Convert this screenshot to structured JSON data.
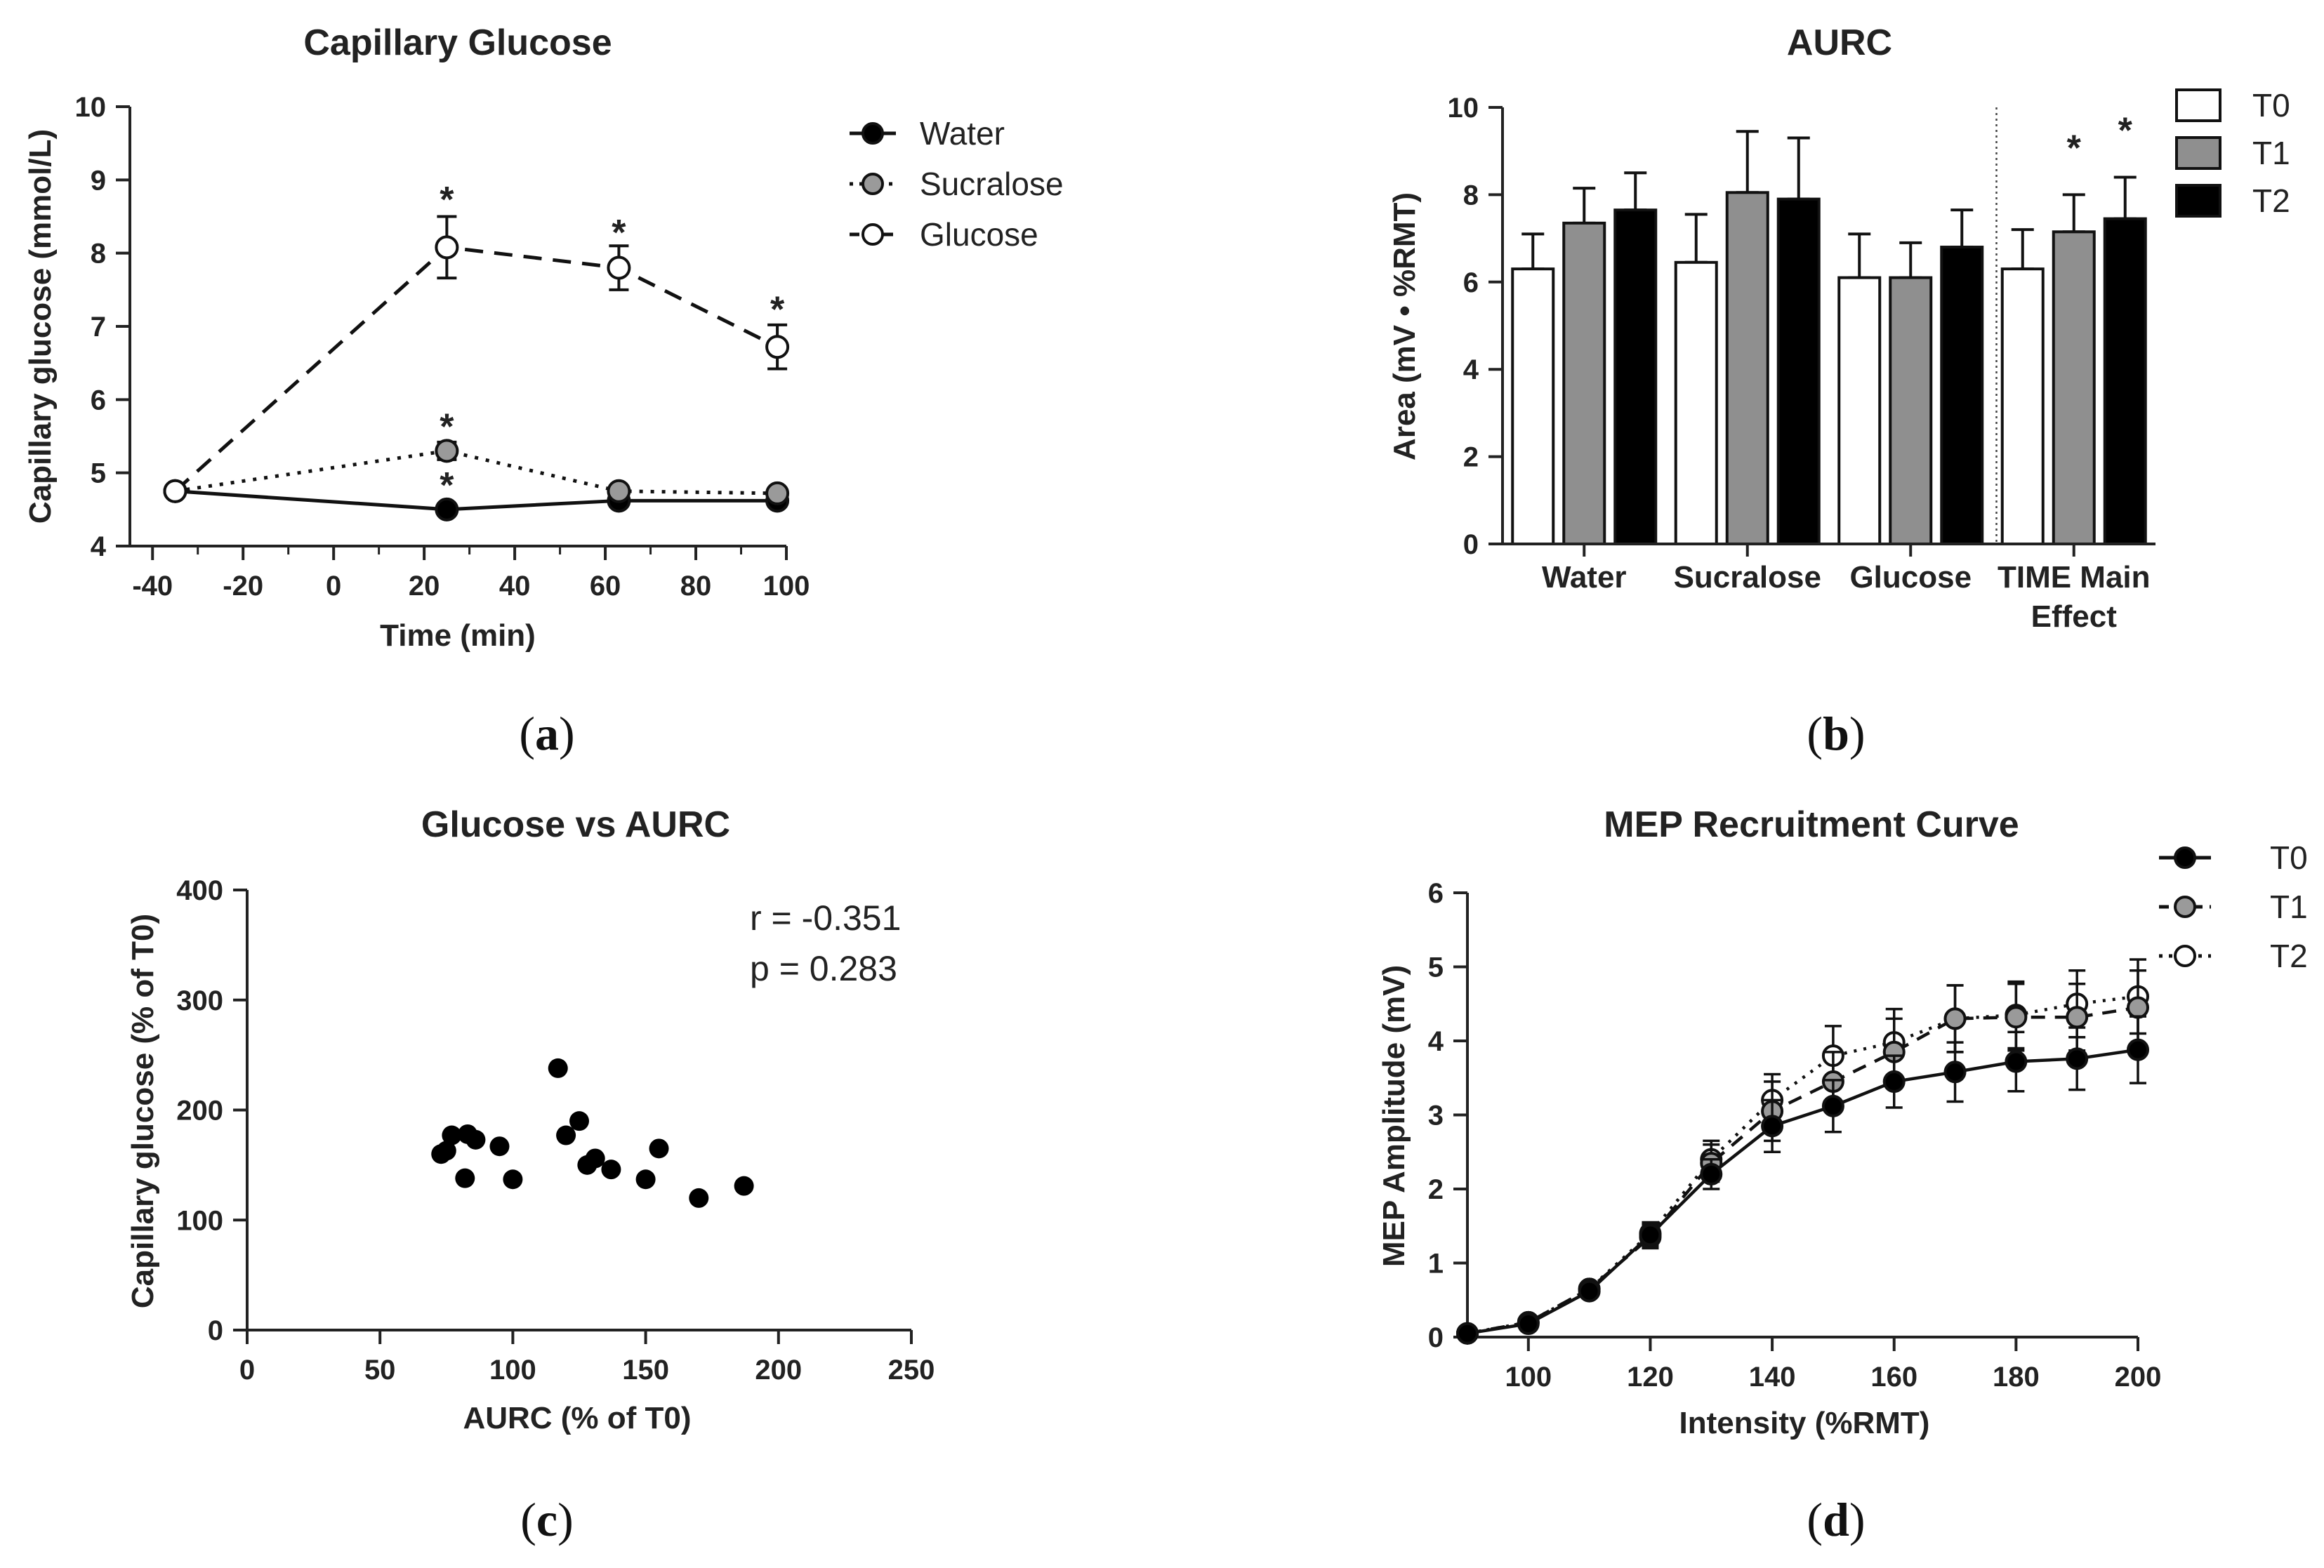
{
  "chart_data": [
    {
      "id": "a",
      "type": "line",
      "panel_label": "a",
      "title": "Capillary Glucose",
      "xlabel": "Time (min)",
      "ylabel": "Capillary glucose (mmol/L)",
      "xlim": [
        -45,
        100
      ],
      "ylim": [
        4,
        10
      ],
      "xticks": [
        -40,
        -20,
        0,
        20,
        40,
        60,
        80,
        100
      ],
      "yticks": [
        4,
        5,
        6,
        7,
        8,
        9,
        10
      ],
      "x": [
        -35,
        25,
        63,
        98
      ],
      "series": [
        {
          "name": "Water",
          "values": [
            4.75,
            4.5,
            4.62,
            4.62
          ],
          "err": [
            0.05,
            0.05,
            0.05,
            0.05
          ],
          "style": "solid",
          "marker_fill": "#000000"
        },
        {
          "name": "Sucralose",
          "values": [
            4.75,
            5.3,
            4.75,
            4.72
          ],
          "err": [
            0.05,
            0.12,
            0.06,
            0.05
          ],
          "style": "dotted",
          "marker_fill": "#9a9a9a"
        },
        {
          "name": "Glucose",
          "values": [
            4.75,
            8.08,
            7.8,
            6.72
          ],
          "err": [
            0.05,
            0.42,
            0.3,
            0.3
          ],
          "style": "dashed",
          "marker_fill": "#ffffff"
        }
      ],
      "significance": [
        {
          "label": "*",
          "x": 25,
          "y": 8.85
        },
        {
          "label": "*",
          "x": 63,
          "y": 8.4
        },
        {
          "label": "*",
          "x": 98,
          "y": 7.35
        },
        {
          "label": "*",
          "x": 25,
          "y": 5.75
        },
        {
          "label": "*",
          "x": 25,
          "y": 4.95
        }
      ]
    },
    {
      "id": "b",
      "type": "bar",
      "panel_label": "b",
      "title": "AURC",
      "xlabel": "",
      "ylabel": "Area (mV • %RMT)",
      "ylim": [
        0,
        10
      ],
      "yticks": [
        0,
        2,
        4,
        6,
        8,
        10
      ],
      "categories": [
        "Water",
        "Sucralose",
        "Glucose",
        "TIME Main Effect"
      ],
      "category_lines": [
        [
          "Water"
        ],
        [
          "Sucralose"
        ],
        [
          "Glucose"
        ],
        [
          "TIME Main",
          "Effect"
        ]
      ],
      "series": [
        {
          "name": "T0",
          "color": "#ffffff",
          "values": [
            6.3,
            6.45,
            6.1,
            6.3
          ],
          "err": [
            0.8,
            1.1,
            1.0,
            0.9
          ]
        },
        {
          "name": "T1",
          "color": "#8f8f8f",
          "values": [
            7.35,
            8.05,
            6.1,
            7.15
          ],
          "err": [
            0.8,
            1.4,
            0.8,
            0.85
          ]
        },
        {
          "name": "T2",
          "color": "#000000",
          "values": [
            7.65,
            7.9,
            6.8,
            7.45
          ],
          "err": [
            0.85,
            1.4,
            0.85,
            0.95
          ]
        }
      ],
      "significance": [
        {
          "label": "*",
          "category": "TIME Main Effect",
          "series": "T1",
          "y": 8.5
        },
        {
          "label": "*",
          "category": "TIME Main Effect",
          "series": "T2",
          "y": 8.9
        }
      ]
    },
    {
      "id": "c",
      "type": "scatter",
      "panel_label": "c",
      "title": "Glucose vs AURC",
      "xlabel": "AURC (% of T0)",
      "ylabel": "Capillary glucose (% of T0)",
      "xlim": [
        0,
        250
      ],
      "ylim": [
        0,
        400
      ],
      "xticks": [
        0,
        50,
        100,
        150,
        200,
        250
      ],
      "yticks": [
        0,
        100,
        200,
        300,
        400
      ],
      "annotation": [
        "r = -0.351",
        "p = 0.283"
      ],
      "points": [
        [
          73,
          160
        ],
        [
          75,
          163
        ],
        [
          77,
          177
        ],
        [
          82,
          138
        ],
        [
          83,
          178
        ],
        [
          86,
          173
        ],
        [
          95,
          167
        ],
        [
          100,
          137
        ],
        [
          117,
          238
        ],
        [
          120,
          177
        ],
        [
          125,
          190
        ],
        [
          128,
          150
        ],
        [
          131,
          156
        ],
        [
          137,
          146
        ],
        [
          150,
          137
        ],
        [
          155,
          165
        ],
        [
          170,
          120
        ],
        [
          187,
          131
        ]
      ]
    },
    {
      "id": "d",
      "type": "line",
      "panel_label": "d",
      "title": "MEP Recruitment Curve",
      "xlabel": "Intensity (%RMT)",
      "ylabel": "MEP Amplitude (mV)",
      "xlim": [
        90,
        200
      ],
      "ylim": [
        0,
        6
      ],
      "xticks": [
        100,
        120,
        140,
        160,
        180,
        200
      ],
      "yticks": [
        0,
        1,
        2,
        3,
        4,
        5,
        6
      ],
      "x": [
        90,
        100,
        110,
        120,
        130,
        140,
        150,
        160,
        170,
        180,
        190,
        200
      ],
      "series": [
        {
          "name": "T0",
          "style": "solid",
          "marker_fill": "#000000",
          "values": [
            0.05,
            0.18,
            0.62,
            1.38,
            2.2,
            2.85,
            3.12,
            3.45,
            3.58,
            3.72,
            3.76,
            3.88
          ],
          "err": [
            0.02,
            0.05,
            0.08,
            0.15,
            0.2,
            0.35,
            0.35,
            0.35,
            0.4,
            0.4,
            0.42,
            0.45
          ]
        },
        {
          "name": "T1",
          "style": "dashed",
          "marker_fill": "#9a9a9a",
          "values": [
            0.05,
            0.2,
            0.65,
            1.35,
            2.35,
            3.05,
            3.45,
            3.85,
            4.3,
            4.32,
            4.32,
            4.45
          ],
          "err": [
            0.02,
            0.05,
            0.08,
            0.15,
            0.25,
            0.4,
            0.4,
            0.45,
            0.45,
            0.45,
            0.45,
            0.5
          ]
        },
        {
          "name": "T2",
          "style": "dotted",
          "marker_fill": "#ffffff",
          "values": [
            0.05,
            0.2,
            0.65,
            1.4,
            2.4,
            3.2,
            3.8,
            3.98,
            4.3,
            4.35,
            4.5,
            4.6
          ],
          "err": [
            0.02,
            0.05,
            0.08,
            0.15,
            0.25,
            0.35,
            0.4,
            0.45,
            0.45,
            0.45,
            0.45,
            0.5
          ]
        }
      ]
    }
  ]
}
